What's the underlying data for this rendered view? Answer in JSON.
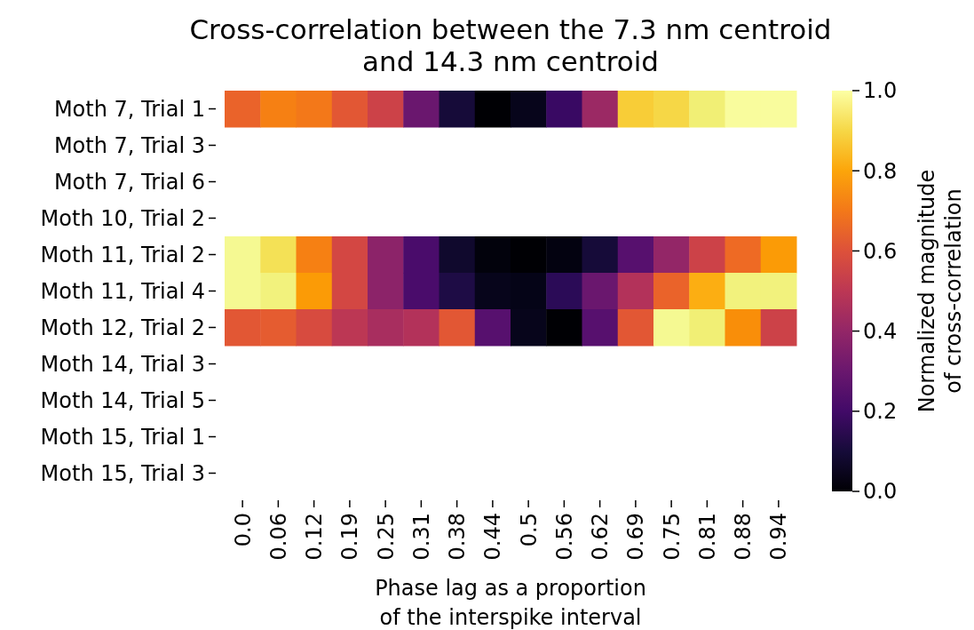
{
  "chart_data": {
    "type": "heatmap",
    "title": "Cross-correlation between the 7.3 nm centroid\nand 14.3 nm centroid",
    "xlabel": "Phase lag as a proportion\nof the interspike interval",
    "clabel": "Normalized magnitude\nof cross-correlation",
    "categories": [
      "0.0",
      "0.06",
      "0.12",
      "0.19",
      "0.25",
      "0.31",
      "0.38",
      "0.44",
      "0.5",
      "0.56",
      "0.62",
      "0.69",
      "0.75",
      "0.81",
      "0.88",
      "0.94"
    ],
    "y_categories": [
      "Moth 7, Trial 1",
      "Moth 7, Trial 3",
      "Moth 7, Trial 6",
      "Moth 10, Trial 2",
      "Moth 11, Trial 2",
      "Moth 11, Trial 4",
      "Moth 12, Trial 2",
      "Moth 14, Trial 3",
      "Moth 14, Trial 5",
      "Moth 15, Trial 1",
      "Moth 15, Trial 3"
    ],
    "cells": [
      [
        0.65,
        0.72,
        0.7,
        0.62,
        0.55,
        0.3,
        0.1,
        0.0,
        0.05,
        0.18,
        0.42,
        0.88,
        0.9,
        0.95,
        0.99,
        0.99
      ],
      [
        null,
        null,
        null,
        null,
        null,
        null,
        null,
        null,
        null,
        null,
        null,
        null,
        null,
        null,
        null,
        null
      ],
      [
        null,
        null,
        null,
        null,
        null,
        null,
        null,
        null,
        null,
        null,
        null,
        null,
        null,
        null,
        null,
        null
      ],
      [
        null,
        null,
        null,
        null,
        null,
        null,
        null,
        null,
        null,
        null,
        null,
        null,
        null,
        null,
        null,
        null
      ],
      [
        0.98,
        0.92,
        0.72,
        0.57,
        0.38,
        0.22,
        0.08,
        0.02,
        0.0,
        0.03,
        0.1,
        0.25,
        0.4,
        0.55,
        0.67,
        0.78
      ],
      [
        0.98,
        0.96,
        0.78,
        0.57,
        0.38,
        0.22,
        0.12,
        0.05,
        0.04,
        0.15,
        0.3,
        0.48,
        0.65,
        0.82,
        0.96,
        0.96
      ],
      [
        0.62,
        0.63,
        0.58,
        0.5,
        0.45,
        0.48,
        0.62,
        0.25,
        0.05,
        0.0,
        0.25,
        0.62,
        0.98,
        0.95,
        0.75,
        0.55
      ],
      [
        null,
        null,
        null,
        null,
        null,
        null,
        null,
        null,
        null,
        null,
        null,
        null,
        null,
        null,
        null,
        null
      ],
      [
        null,
        null,
        null,
        null,
        null,
        null,
        null,
        null,
        null,
        null,
        null,
        null,
        null,
        null,
        null,
        null
      ],
      [
        null,
        null,
        null,
        null,
        null,
        null,
        null,
        null,
        null,
        null,
        null,
        null,
        null,
        null,
        null,
        null
      ],
      [
        null,
        null,
        null,
        null,
        null,
        null,
        null,
        null,
        null,
        null,
        null,
        null,
        null,
        null,
        null,
        null
      ]
    ],
    "clim": [
      0,
      1
    ],
    "cticks": [
      {
        "value": 0,
        "label": "0.0"
      },
      {
        "value": 0.2,
        "label": "0.2"
      },
      {
        "value": 0.4,
        "label": "0.4"
      },
      {
        "value": 0.6,
        "label": "0.6"
      },
      {
        "value": 0.8,
        "label": "0.8"
      },
      {
        "value": 1,
        "label": "1.0"
      }
    ]
  }
}
